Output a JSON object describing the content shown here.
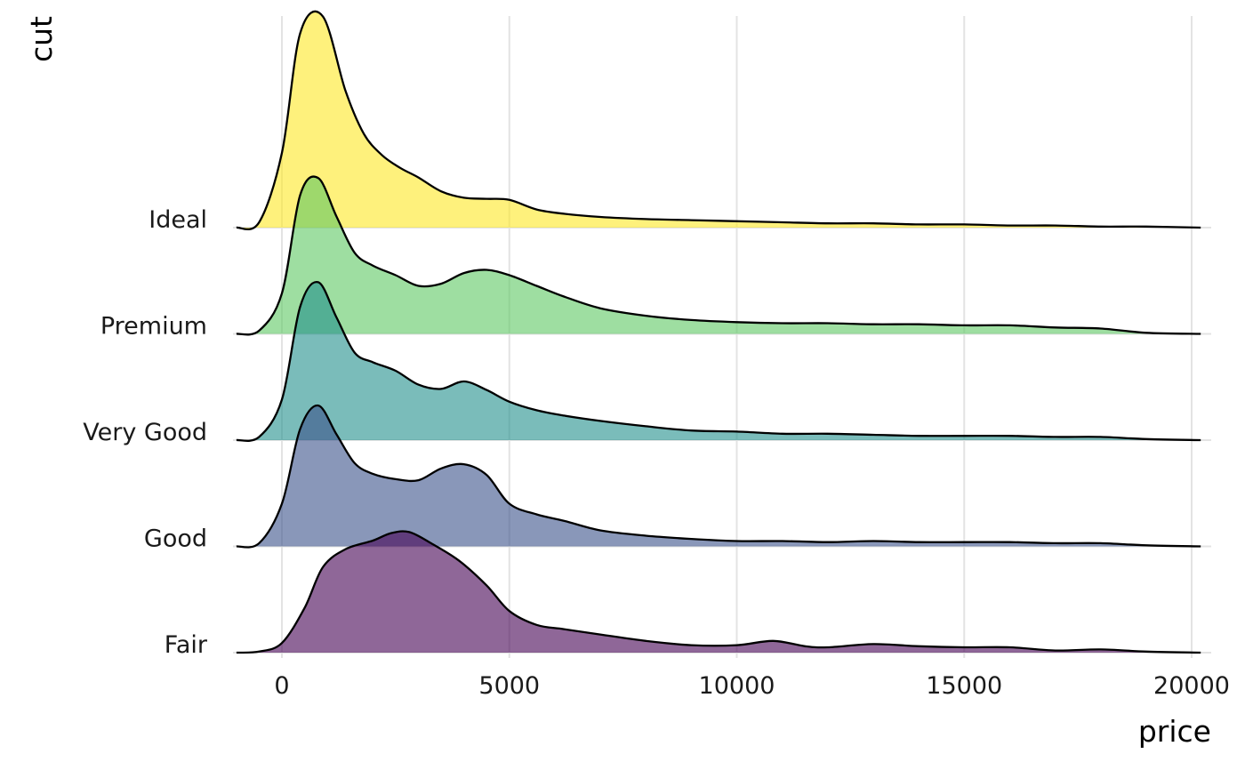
{
  "chart_data": {
    "type": "ridgeline",
    "xlabel": "price",
    "ylabel": "cut",
    "xlim": [
      -1000,
      20200
    ],
    "x_ticks": [
      0,
      5000,
      10000,
      15000,
      20000
    ],
    "x_tick_labels": [
      "0",
      "5000",
      "10000",
      "15000",
      "20000"
    ],
    "grid": true,
    "legend": "none",
    "categories": [
      "Fair",
      "Good",
      "Very Good",
      "Premium",
      "Ideal"
    ],
    "series": [
      {
        "name": "Fair",
        "color": "#440154",
        "x": [
          -1000,
          -500,
          0,
          500,
          900,
          1400,
          2000,
          2400,
          2800,
          3300,
          3900,
          4500,
          5000,
          5600,
          6200,
          7000,
          8000,
          9000,
          10000,
          10800,
          11500,
          12000,
          13000,
          14000,
          15000,
          16000,
          17000,
          18000,
          19000,
          20200
        ],
        "y": [
          0.0,
          0.01,
          0.09,
          0.42,
          0.8,
          0.97,
          1.05,
          1.12,
          1.13,
          1.02,
          0.86,
          0.63,
          0.39,
          0.26,
          0.22,
          0.17,
          0.11,
          0.07,
          0.07,
          0.11,
          0.06,
          0.05,
          0.08,
          0.06,
          0.05,
          0.05,
          0.02,
          0.03,
          0.01,
          0.0
        ]
      },
      {
        "name": "Good",
        "color": "#3B528B",
        "x": [
          -1000,
          -500,
          0,
          400,
          800,
          1200,
          1600,
          2000,
          2500,
          3000,
          3500,
          4000,
          4500,
          5000,
          5600,
          6200,
          7000,
          8000,
          9000,
          10000,
          11000,
          12000,
          13000,
          14000,
          15000,
          16000,
          17000,
          18000,
          19000,
          20200
        ],
        "y": [
          0.0,
          0.03,
          0.4,
          1.1,
          1.32,
          1.05,
          0.78,
          0.68,
          0.63,
          0.62,
          0.73,
          0.77,
          0.67,
          0.4,
          0.3,
          0.24,
          0.15,
          0.1,
          0.07,
          0.05,
          0.05,
          0.04,
          0.05,
          0.04,
          0.04,
          0.04,
          0.03,
          0.03,
          0.01,
          0.0
        ]
      },
      {
        "name": "Very Good",
        "color": "#21908C",
        "x": [
          -1000,
          -500,
          0,
          400,
          800,
          1200,
          1600,
          2000,
          2500,
          3000,
          3500,
          4000,
          4500,
          5000,
          5600,
          6200,
          7000,
          8000,
          9000,
          10000,
          11000,
          12000,
          13000,
          14000,
          15000,
          16000,
          17000,
          18000,
          19000,
          20200
        ],
        "y": [
          0.0,
          0.03,
          0.38,
          1.25,
          1.48,
          1.15,
          0.82,
          0.73,
          0.65,
          0.52,
          0.48,
          0.55,
          0.47,
          0.36,
          0.28,
          0.23,
          0.18,
          0.13,
          0.09,
          0.08,
          0.06,
          0.06,
          0.05,
          0.04,
          0.04,
          0.04,
          0.03,
          0.03,
          0.01,
          0.0
        ]
      },
      {
        "name": "Premium",
        "color": "#5DC863",
        "x": [
          -1000,
          -500,
          0,
          400,
          800,
          1200,
          1600,
          2000,
          2500,
          3000,
          3500,
          4000,
          4500,
          5000,
          5600,
          6200,
          7000,
          8000,
          9000,
          10000,
          11000,
          12000,
          13000,
          14000,
          15000,
          16000,
          17000,
          18000,
          19000,
          20200
        ],
        "y": [
          0.0,
          0.03,
          0.38,
          1.3,
          1.46,
          1.1,
          0.76,
          0.64,
          0.55,
          0.45,
          0.47,
          0.57,
          0.6,
          0.55,
          0.45,
          0.35,
          0.24,
          0.17,
          0.13,
          0.11,
          0.1,
          0.1,
          0.09,
          0.09,
          0.08,
          0.08,
          0.06,
          0.05,
          0.01,
          0.0
        ]
      },
      {
        "name": "Ideal",
        "color": "#FDE725",
        "x": [
          -1000,
          -500,
          0,
          400,
          900,
          1400,
          1800,
          2200,
          2600,
          3000,
          3500,
          4000,
          4500,
          5000,
          5600,
          6200,
          7000,
          8000,
          9000,
          10000,
          11000,
          12000,
          13000,
          14000,
          15000,
          16000,
          17000,
          18000,
          19000,
          20200
        ],
        "y": [
          0.0,
          0.05,
          0.7,
          1.82,
          1.98,
          1.28,
          0.88,
          0.68,
          0.56,
          0.47,
          0.34,
          0.28,
          0.27,
          0.26,
          0.17,
          0.13,
          0.1,
          0.08,
          0.07,
          0.06,
          0.05,
          0.04,
          0.04,
          0.03,
          0.03,
          0.02,
          0.02,
          0.01,
          0.01,
          0.0
        ]
      }
    ]
  }
}
